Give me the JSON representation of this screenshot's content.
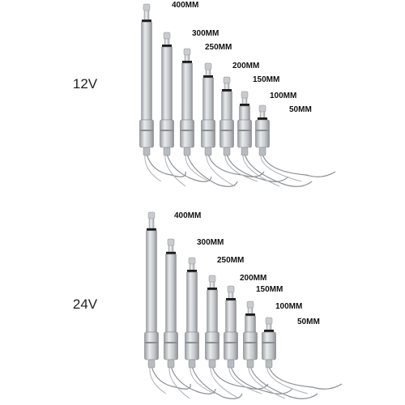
{
  "groups": [
    {
      "voltage": "12V",
      "lengths": [
        "400MM",
        "300MM",
        "250MM",
        "200MM",
        "150MM",
        "100MM",
        "50MM"
      ]
    },
    {
      "voltage": "24V",
      "lengths": [
        "400MM",
        "300MM",
        "250MM",
        "200MM",
        "150MM",
        "100MM",
        "50MM"
      ]
    }
  ]
}
